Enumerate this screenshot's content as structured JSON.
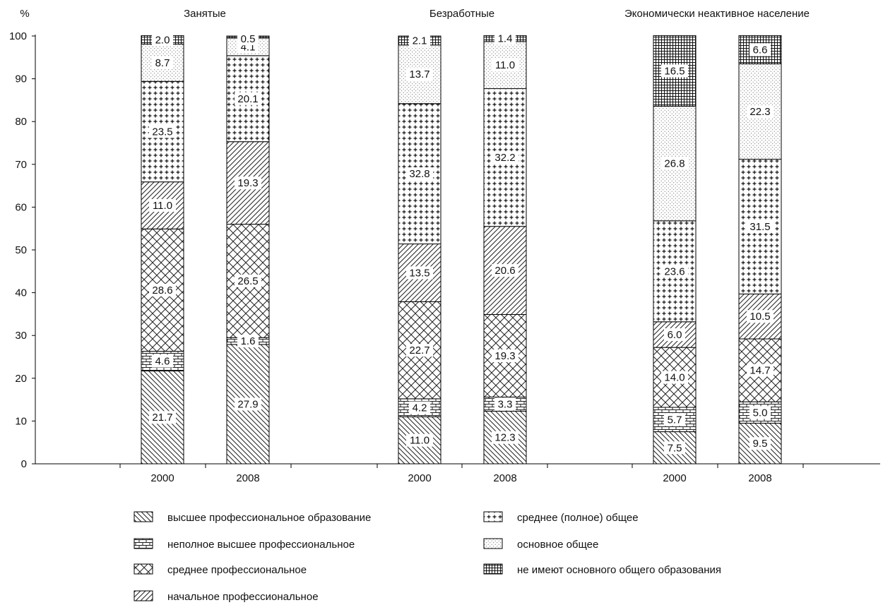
{
  "chart_data": {
    "type": "bar",
    "stacked": true,
    "y_unit_label": "%",
    "ylim": [
      0,
      100
    ],
    "yticks": [
      "0",
      "10",
      "20",
      "30",
      "40",
      "50",
      "60",
      "70",
      "80",
      "90",
      "100"
    ],
    "grid": false,
    "legend_placement": "bottom",
    "groups": [
      "Занятые",
      "Безработные",
      "Экономически неактивное население"
    ],
    "years": [
      "2000",
      "2008"
    ],
    "series": [
      {
        "name": "высшее профессиональное образование",
        "pattern": "diag-down"
      },
      {
        "name": "неполное высшее профессиональное",
        "pattern": "brick"
      },
      {
        "name": "среднее профессиональное",
        "pattern": "crosshatch"
      },
      {
        "name": "начальное профессиональное",
        "pattern": "diag-up"
      },
      {
        "name": "среднее (полное) общее",
        "pattern": "plus"
      },
      {
        "name": "основное общее",
        "pattern": "dots"
      },
      {
        "name": "не имеют основного общего образования",
        "pattern": "grid"
      }
    ],
    "bars": [
      {
        "group": "Занятые",
        "year": "2000",
        "values": [
          21.7,
          4.6,
          28.6,
          11.0,
          23.5,
          8.7,
          2.0
        ],
        "labels": [
          "21.7",
          "4.6",
          "28.6",
          "11.0",
          "23.5",
          "8.7",
          "2.0"
        ]
      },
      {
        "group": "Занятые",
        "year": "2008",
        "values": [
          27.9,
          1.6,
          26.5,
          19.3,
          20.1,
          4.1,
          0.5
        ],
        "labels": [
          "27.9",
          "1.6",
          "26.5",
          "19.3",
          "20.1",
          "4.1",
          "0.5"
        ]
      },
      {
        "group": "Безработные",
        "year": "2000",
        "values": [
          11.0,
          4.2,
          22.7,
          13.5,
          32.8,
          13.7,
          2.1
        ],
        "labels": [
          "11.0",
          "4.2",
          "22.7",
          "13.5",
          "32.8",
          "13.7",
          "2.1"
        ]
      },
      {
        "group": "Безработные",
        "year": "2008",
        "values": [
          12.3,
          3.3,
          19.3,
          20.6,
          32.2,
          11.0,
          1.4
        ],
        "labels": [
          "12.3",
          "3.3",
          "19.3",
          "20.6",
          "32.2",
          "11.0",
          "1.4"
        ]
      },
      {
        "group": "Экономически неактивное население",
        "year": "2000",
        "values": [
          7.5,
          5.7,
          14.0,
          6.0,
          23.6,
          26.8,
          16.5
        ],
        "labels": [
          "7.5",
          "5.7",
          "14.0",
          "6.0",
          "23.6",
          "26.8",
          "16.5"
        ]
      },
      {
        "group": "Экономически неактивное население",
        "year": "2008",
        "values": [
          9.5,
          5.0,
          14.7,
          10.5,
          31.5,
          22.3,
          6.6
        ],
        "labels": [
          "9.5",
          "5.0",
          "14.7",
          "10.5",
          "31.5",
          "22.3",
          "6.6"
        ]
      }
    ]
  }
}
